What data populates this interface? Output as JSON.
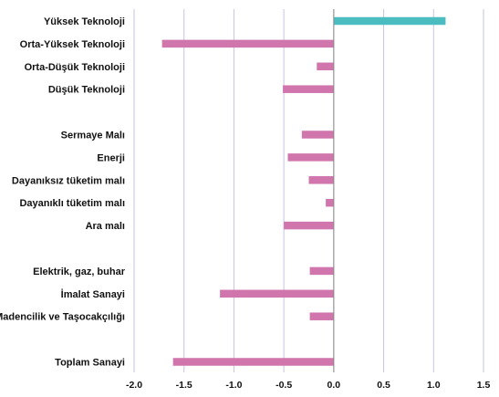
{
  "chart_data": {
    "type": "bar",
    "orientation": "horizontal",
    "categories": [
      "Yüksek Teknoloji",
      "Orta-Yüksek Teknoloji",
      "Orta-Düşük Teknoloji",
      "Düşük Teknoloji",
      "",
      "Sermaye Malı",
      "Enerji",
      "Dayanıksız tüketim malı",
      "Dayanıklı tüketim malı",
      "Ara malı",
      "",
      "Elektrik, gaz, buhar",
      "İmalat Sanayi",
      "Madencilik ve Taşocakçılığı",
      "",
      "Toplam Sanayi"
    ],
    "values": [
      1.12,
      -1.72,
      -0.17,
      -0.51,
      null,
      -0.32,
      -0.46,
      -0.25,
      -0.08,
      -0.5,
      null,
      -0.24,
      -1.14,
      -0.24,
      null,
      -1.61
    ],
    "colors": [
      "#4bbcc0",
      "#d175ad",
      "#d175ad",
      "#d175ad",
      null,
      "#d175ad",
      "#d175ad",
      "#d175ad",
      "#d175ad",
      "#d175ad",
      null,
      "#d175ad",
      "#d175ad",
      "#d175ad",
      null,
      "#d175ad"
    ],
    "x_ticks": [
      "-2.0",
      "-1.5",
      "-1.0",
      "-0.5",
      "0.0",
      "0.5",
      "1.0",
      "1.5"
    ],
    "xlim": [
      -2.0,
      1.5
    ],
    "grid": true,
    "gridline_color": "#c5c5df",
    "title": "",
    "xlabel": "",
    "ylabel": ""
  }
}
